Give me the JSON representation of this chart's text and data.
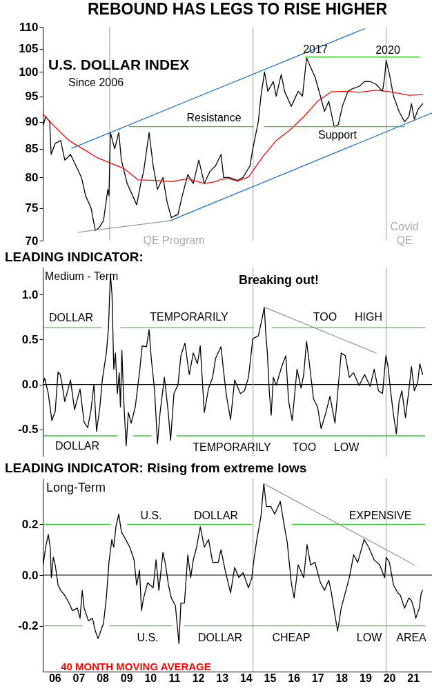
{
  "chart_data": [
    {
      "type": "line",
      "title": "REBOUND HAS LEGS TO RISE HIGHER",
      "subtitle": "U.S. DOLLAR INDEX",
      "log": true,
      "tick_labels": "y",
      "xlim": [
        5.5,
        21.79
      ],
      "xticks": [
        6,
        7,
        8,
        9,
        10,
        11,
        12,
        13,
        14,
        15,
        16,
        17,
        18,
        19,
        20,
        21
      ],
      "ylim": [
        70,
        110
      ],
      "yticks": [
        70,
        75,
        80,
        85,
        90,
        95,
        100,
        105,
        110
      ],
      "series": [
        {
          "color": "#000000",
          "x": [
            5.5,
            5.62,
            5.79,
            5.85,
            6.02,
            6.25,
            6.42,
            6.66,
            6.89,
            7.12,
            7.29,
            7.52,
            7.7,
            7.87,
            8.04,
            8.22,
            8.27,
            8.33,
            8.51,
            8.68,
            8.79,
            9.03,
            9.26,
            9.43,
            9.6,
            9.72,
            9.95,
            10.12,
            10.3,
            10.53,
            10.7,
            10.88,
            11.16,
            11.34,
            11.57,
            11.8,
            12.03,
            12.26,
            12.49,
            12.73,
            12.96,
            13.07,
            13.3,
            13.65,
            13.88,
            14.17,
            14.29,
            14.52,
            14.63,
            14.78,
            14.92,
            15.15,
            15.27,
            15.48,
            15.62,
            15.9,
            16.19,
            16.37,
            16.54,
            16.71,
            16.89,
            17.12,
            17.29,
            17.47,
            17.7,
            17.87,
            18.04,
            18.27,
            18.45,
            18.74,
            18.97,
            19.2,
            19.43,
            19.72,
            19.81,
            19.87,
            20.01,
            20.18,
            20.41,
            20.64,
            20.82,
            20.93,
            21.05,
            21.22,
            21.4
          ],
          "values": [
            89,
            91,
            90,
            84,
            86,
            86.5,
            83,
            84,
            82,
            80,
            77,
            75,
            71.5,
            72,
            73,
            78,
            77,
            88,
            85,
            88,
            83,
            79,
            77,
            75.5,
            79,
            81,
            88,
            82,
            78,
            80,
            76,
            73.5,
            74,
            77,
            80.5,
            79,
            83,
            79,
            81,
            82,
            84,
            80,
            80,
            79.5,
            80,
            82,
            85,
            90,
            95,
            100,
            96,
            98,
            95,
            99.5,
            96,
            93,
            96,
            95,
            103,
            101,
            99,
            95,
            92,
            94,
            89,
            89.5,
            93,
            96,
            96.5,
            97,
            98,
            98,
            97.5,
            96,
            99,
            102.5,
            99.5,
            95,
            92,
            90,
            91,
            93.5,
            90.5,
            92.5,
            93.5
          ]
        },
        {
          "color": "#ff0000",
          "x": [
            5.5,
            6.02,
            6.6,
            7.18,
            7.75,
            8.33,
            8.91,
            9.49,
            10.18,
            10.88,
            11.57,
            12.26,
            12.73,
            12.96,
            13.3,
            13.65,
            14.11,
            14.69,
            15.27,
            15.85,
            16.43,
            17.0,
            17.58,
            18.16,
            18.74,
            19.43,
            19.89,
            20.36,
            20.82,
            21.4
          ],
          "values": [
            91.5,
            89,
            86.5,
            85,
            83.5,
            82.5,
            81.5,
            79.6,
            79.5,
            79.3,
            79.8,
            79,
            79.3,
            79.7,
            79.8,
            79.4,
            80.1,
            83.5,
            86.5,
            88.5,
            91,
            94,
            95.9,
            96,
            95.8,
            96.2,
            96,
            95.6,
            95.2,
            95.3
          ]
        },
        {
          "color": "#1f6fd1",
          "x": [
            6.71,
            18.97
          ],
          "values": [
            85.1,
            109.6
          ]
        },
        {
          "color": "#1f6fd1",
          "x": [
            10.82,
            21.79
          ],
          "values": [
            73,
            91.7
          ]
        },
        {
          "color": "#999999",
          "x": [
            6.98,
            10.82
          ],
          "values": [
            71.25,
            73
          ]
        },
        {
          "color": "#33cc33",
          "x": [
            9.12,
            14.32
          ],
          "values": [
            89.1,
            89.1
          ]
        },
        {
          "color": "#33cc33",
          "x": [
            14.77,
            20.64
          ],
          "values": [
            89.1,
            89.1
          ]
        },
        {
          "color": "#33cc33",
          "x": [
            16.48,
            21.28
          ],
          "values": [
            103.2,
            103.2
          ]
        }
      ],
      "ref_lines": [
        {
          "axis": "x",
          "value": 8.3,
          "color": "#aaaaaa"
        },
        {
          "axis": "x",
          "value": 14.3,
          "color": "#aaaaaa"
        },
        {
          "axis": "x",
          "value": 19.87,
          "color": "#aaaaaa"
        }
      ],
      "annotations": [
        "Since 2006",
        "2017",
        "2020",
        "Resistance",
        "Support",
        "QE  Program",
        "Covid",
        "QE"
      ]
    },
    {
      "type": "line",
      "title": "LEADING INDICATOR:",
      "subtitle": "Medium - Term",
      "tick_labels": "y",
      "xlim": [
        5.5,
        21.79
      ],
      "xticks": [
        6,
        7,
        8,
        9,
        10,
        11,
        12,
        13,
        14,
        15,
        16,
        17,
        18,
        19,
        20,
        21
      ],
      "ylim": [
        -0.8,
        1.3
      ],
      "yticks": [
        {
          "value": -0.5,
          "label": "-0.5"
        },
        {
          "value": 0,
          "label": "0.0"
        },
        {
          "value": 0.5,
          "label": "0.5"
        },
        {
          "value": 1,
          "label": "1.0"
        }
      ],
      "series": [
        {
          "color": "#000000",
          "x": [
            5.5,
            5.58,
            5.73,
            5.88,
            6.02,
            6.14,
            6.23,
            6.31,
            6.42,
            6.66,
            6.83,
            7.06,
            7.23,
            7.38,
            7.52,
            7.64,
            7.75,
            7.89,
            7.99,
            8.16,
            8.25,
            8.33,
            8.4,
            8.47,
            8.54,
            8.62,
            8.7,
            8.75,
            8.81,
            8.89,
            8.99,
            9.08,
            9.2,
            9.37,
            9.55,
            9.66,
            9.84,
            9.95,
            10.04,
            10.18,
            10.3,
            10.41,
            10.59,
            10.74,
            10.85,
            10.99,
            11.16,
            11.28,
            11.45,
            11.63,
            11.8,
            11.97,
            12.09,
            12.26,
            12.44,
            12.61,
            12.73,
            12.96,
            13.07,
            13.19,
            13.36,
            13.53,
            13.77,
            13.94,
            14.11,
            14.29,
            14.52,
            14.67,
            14.77,
            14.84,
            14.9,
            14.98,
            15.06,
            15.15,
            15.27,
            15.5,
            15.67,
            15.79,
            15.94,
            16.14,
            16.31,
            16.42,
            16.54,
            16.66,
            16.83,
            17.0,
            17.15,
            17.35,
            17.52,
            17.73,
            17.87,
            17.99,
            18.16,
            18.33,
            18.51,
            18.74,
            18.97,
            19.2,
            19.37,
            19.55,
            19.72,
            19.86,
            19.95,
            20.07,
            20.18,
            20.3,
            20.41,
            20.53,
            20.68,
            20.82,
            20.93,
            21.05,
            21.19,
            21.28,
            21.4
          ],
          "values": [
            0,
            0.07,
            -0.1,
            -0.4,
            -0.3,
            0.14,
            0.11,
            0,
            -0.19,
            0.05,
            -0.28,
            -0.05,
            -0.42,
            -0.48,
            -0.28,
            0,
            -0.52,
            -0.25,
            0.05,
            0.35,
            0.63,
            1.23,
            0.99,
            0.17,
            0.35,
            -0.1,
            0.13,
            -0.25,
            0.38,
            -0.19,
            -0.68,
            -0.31,
            -0.43,
            -0.25,
            0.14,
            0.43,
            0.42,
            0.61,
            0.29,
            -0.07,
            -0.66,
            -0.31,
            0.08,
            -0.28,
            -0.62,
            -0.1,
            0,
            0.32,
            0.46,
            0.11,
            0.35,
            0.23,
            0.43,
            -0.31,
            -0.04,
            0.08,
            0.29,
            0.42,
            0.14,
            -0.13,
            -0.39,
            0.05,
            -0.1,
            -0.07,
            0.08,
            0.51,
            0.54,
            0.72,
            0.86,
            0.54,
            0.35,
            -0.08,
            -0.34,
            0.08,
            -0.01,
            0.2,
            0.32,
            -0.19,
            -0.4,
            0.17,
            -0.04,
            0.11,
            0.48,
            0.23,
            -0.16,
            -0.25,
            -0.49,
            -0.31,
            -0.13,
            -0.43,
            -0.01,
            0.35,
            0.32,
            0.08,
            0.13,
            -0.01,
            0.11,
            -0.02,
            0.17,
            -0.07,
            -0.1,
            0.32,
            0.2,
            -0.1,
            -0.34,
            -0.55,
            -0.19,
            -0.07,
            -0.37,
            -0.07,
            0.2,
            -0.07,
            0.02,
            0.23,
            0.11
          ]
        },
        {
          "color": "#33cc33",
          "x": [
            5.53,
            7.96
          ],
          "values": [
            0.63,
            0.63
          ]
        },
        {
          "color": "#33cc33",
          "x": [
            8.76,
            14.32
          ],
          "values": [
            0.63,
            0.63
          ]
        },
        {
          "color": "#33cc33",
          "x": [
            15.1,
            21.5
          ],
          "values": [
            0.63,
            0.63
          ]
        },
        {
          "color": "#33cc33",
          "x": [
            5.53,
            8.62
          ],
          "values": [
            -0.57,
            -0.57
          ]
        },
        {
          "color": "#33cc33",
          "x": [
            9.29,
            10.04
          ],
          "values": [
            -0.57,
            -0.57
          ]
        },
        {
          "color": "#33cc33",
          "x": [
            11.11,
            21.49
          ],
          "values": [
            -0.57,
            -0.57
          ]
        },
        {
          "color": "#999999",
          "x": [
            14.77,
            19.45
          ],
          "values": [
            0.86,
            0.35
          ]
        }
      ],
      "ref_lines": [
        {
          "axis": "y",
          "value": 0,
          "color": "#000000"
        },
        {
          "axis": "x",
          "value": 14.3,
          "color": "#aaaaaa"
        },
        {
          "axis": "x",
          "value": 19.87,
          "color": "#aaaaaa"
        }
      ],
      "annotations": [
        "Breaking out!",
        "DOLLAR",
        "TEMPORARILY",
        "TOO",
        "HIGH",
        "DOLLAR",
        "TEMPORARILY",
        "TOO",
        "LOW"
      ]
    },
    {
      "type": "line",
      "title": "LEADING INDICATOR: Rising from extreme lows",
      "subtitle": "Long-Term",
      "xlim": [
        5.5,
        21.79
      ],
      "xticks": [
        {
          "value": 6,
          "label": "06"
        },
        {
          "value": 7,
          "label": "07"
        },
        {
          "value": 8,
          "label": "08"
        },
        {
          "value": 9,
          "label": "09"
        },
        10,
        11,
        12,
        13,
        14,
        15,
        16,
        17,
        18,
        19,
        20,
        21
      ],
      "ylim": [
        -0.38,
        0.38
      ],
      "yticks": [
        {
          "value": -0.2,
          "label": "-0.2"
        },
        {
          "value": 0,
          "label": "0.0"
        },
        {
          "value": 0.2,
          "label": "0.2"
        }
      ],
      "series": [
        {
          "color": "#000000",
          "x": [
            5.5,
            5.62,
            5.73,
            5.81,
            5.86,
            5.94,
            6.02,
            6.14,
            6.25,
            6.42,
            6.6,
            6.74,
            6.95,
            7.06,
            7.15,
            7.23,
            7.41,
            7.58,
            7.7,
            7.81,
            7.93,
            8.04,
            8.16,
            8.27,
            8.39,
            8.47,
            8.56,
            8.68,
            8.79,
            8.97,
            9.14,
            9.32,
            9.43,
            9.55,
            9.63,
            9.72,
            9.89,
            10.12,
            10.24,
            10.36,
            10.53,
            10.64,
            10.76,
            10.88,
            11.05,
            11.2,
            11.28,
            11.43,
            11.57,
            11.69,
            11.8,
            11.94,
            12.09,
            12.26,
            12.44,
            12.61,
            12.84,
            12.96,
            13.13,
            13.36,
            13.53,
            13.71,
            13.88,
            14.11,
            14.25,
            14.32,
            14.46,
            14.63,
            14.75,
            14.86,
            15.04,
            15.21,
            15.44,
            15.56,
            15.73,
            15.9,
            16.02,
            16.19,
            16.42,
            16.56,
            16.71,
            16.89,
            17.12,
            17.29,
            17.47,
            17.58,
            17.75,
            17.84,
            17.99,
            18.16,
            18.33,
            18.51,
            18.68,
            18.95,
            19.14,
            19.37,
            19.6,
            19.81,
            19.87,
            20.01,
            20.18,
            20.36,
            20.47,
            20.64,
            20.82,
            20.93,
            21.03,
            21.11,
            21.26,
            21.34,
            21.4
          ],
          "values": [
            0.03,
            0.11,
            0.16,
            0.11,
            -0.01,
            0.07,
            0.04,
            -0.04,
            -0.06,
            -0.08,
            -0.11,
            -0.14,
            -0.13,
            -0.17,
            -0.06,
            -0.13,
            -0.18,
            -0.17,
            -0.22,
            -0.25,
            -0.22,
            -0.19,
            -0.09,
            0.05,
            0.14,
            0.11,
            0.19,
            0.24,
            0.17,
            0.14,
            0.11,
            0.06,
            -0.04,
            0.02,
            -0.14,
            -0.09,
            -0.03,
            -0.05,
            0.06,
            -0.06,
            0.09,
            0.04,
            -0.04,
            -0.09,
            -0.12,
            -0.27,
            -0.11,
            -0.11,
            0.08,
            -0.01,
            0.06,
            0.11,
            0.19,
            0.11,
            0.14,
            0.05,
            0.05,
            0.1,
            0.02,
            -0.07,
            0.03,
            -0.01,
            0.01,
            -0.05,
            -0.01,
            0.05,
            0.14,
            0.23,
            0.36,
            0.27,
            0.27,
            0.24,
            0.29,
            0.22,
            0.13,
            -0.03,
            -0.09,
            0.04,
            -0.01,
            0.12,
            0.04,
            0.05,
            -0.03,
            -0.06,
            -0.02,
            -0.07,
            -0.17,
            -0.22,
            -0.13,
            -0.07,
            -0.01,
            0.08,
            0.05,
            0.14,
            0.11,
            0.06,
            0.04,
            -0.01,
            0.07,
            0.05,
            -0.04,
            -0.07,
            -0.08,
            -0.13,
            -0.09,
            -0.1,
            -0.13,
            -0.17,
            -0.13,
            -0.07,
            -0.06
          ]
        },
        {
          "color": "#33cc33",
          "x": [
            5.5,
            8.33
          ],
          "values": [
            0.2,
            0.2
          ]
        },
        {
          "color": "#33cc33",
          "x": [
            9.03,
            14.25
          ],
          "values": [
            0.2,
            0.2
          ]
        },
        {
          "color": "#33cc33",
          "x": [
            15.94,
            21.5
          ],
          "values": [
            0.2,
            0.2
          ]
        },
        {
          "color": "#33cc33",
          "x": [
            5.5,
            7.14
          ],
          "values": [
            -0.2,
            -0.2
          ]
        },
        {
          "color": "#33cc33",
          "x": [
            8.3,
            10.9
          ],
          "values": [
            -0.2,
            -0.2
          ]
        },
        {
          "color": "#33cc33",
          "x": [
            11.43,
            21.5
          ],
          "values": [
            -0.2,
            -0.2
          ]
        },
        {
          "color": "#999999",
          "x": [
            14.75,
            21.05
          ],
          "values": [
            0.36,
            0.04
          ]
        }
      ],
      "ref_lines": [
        {
          "axis": "y",
          "value": 0,
          "color": "#000000"
        },
        {
          "axis": "x",
          "value": 14.3,
          "color": "#aaaaaa"
        },
        {
          "axis": "x",
          "value": 19.87,
          "color": "#aaaaaa"
        }
      ],
      "annotations": [
        "U.S.",
        "DOLLAR",
        "EXPENSIVE",
        "U.S.",
        "DOLLAR",
        "CHEAP",
        "LOW",
        "AREA",
        "40 MONTH MOVING AVERAGE"
      ]
    }
  ]
}
